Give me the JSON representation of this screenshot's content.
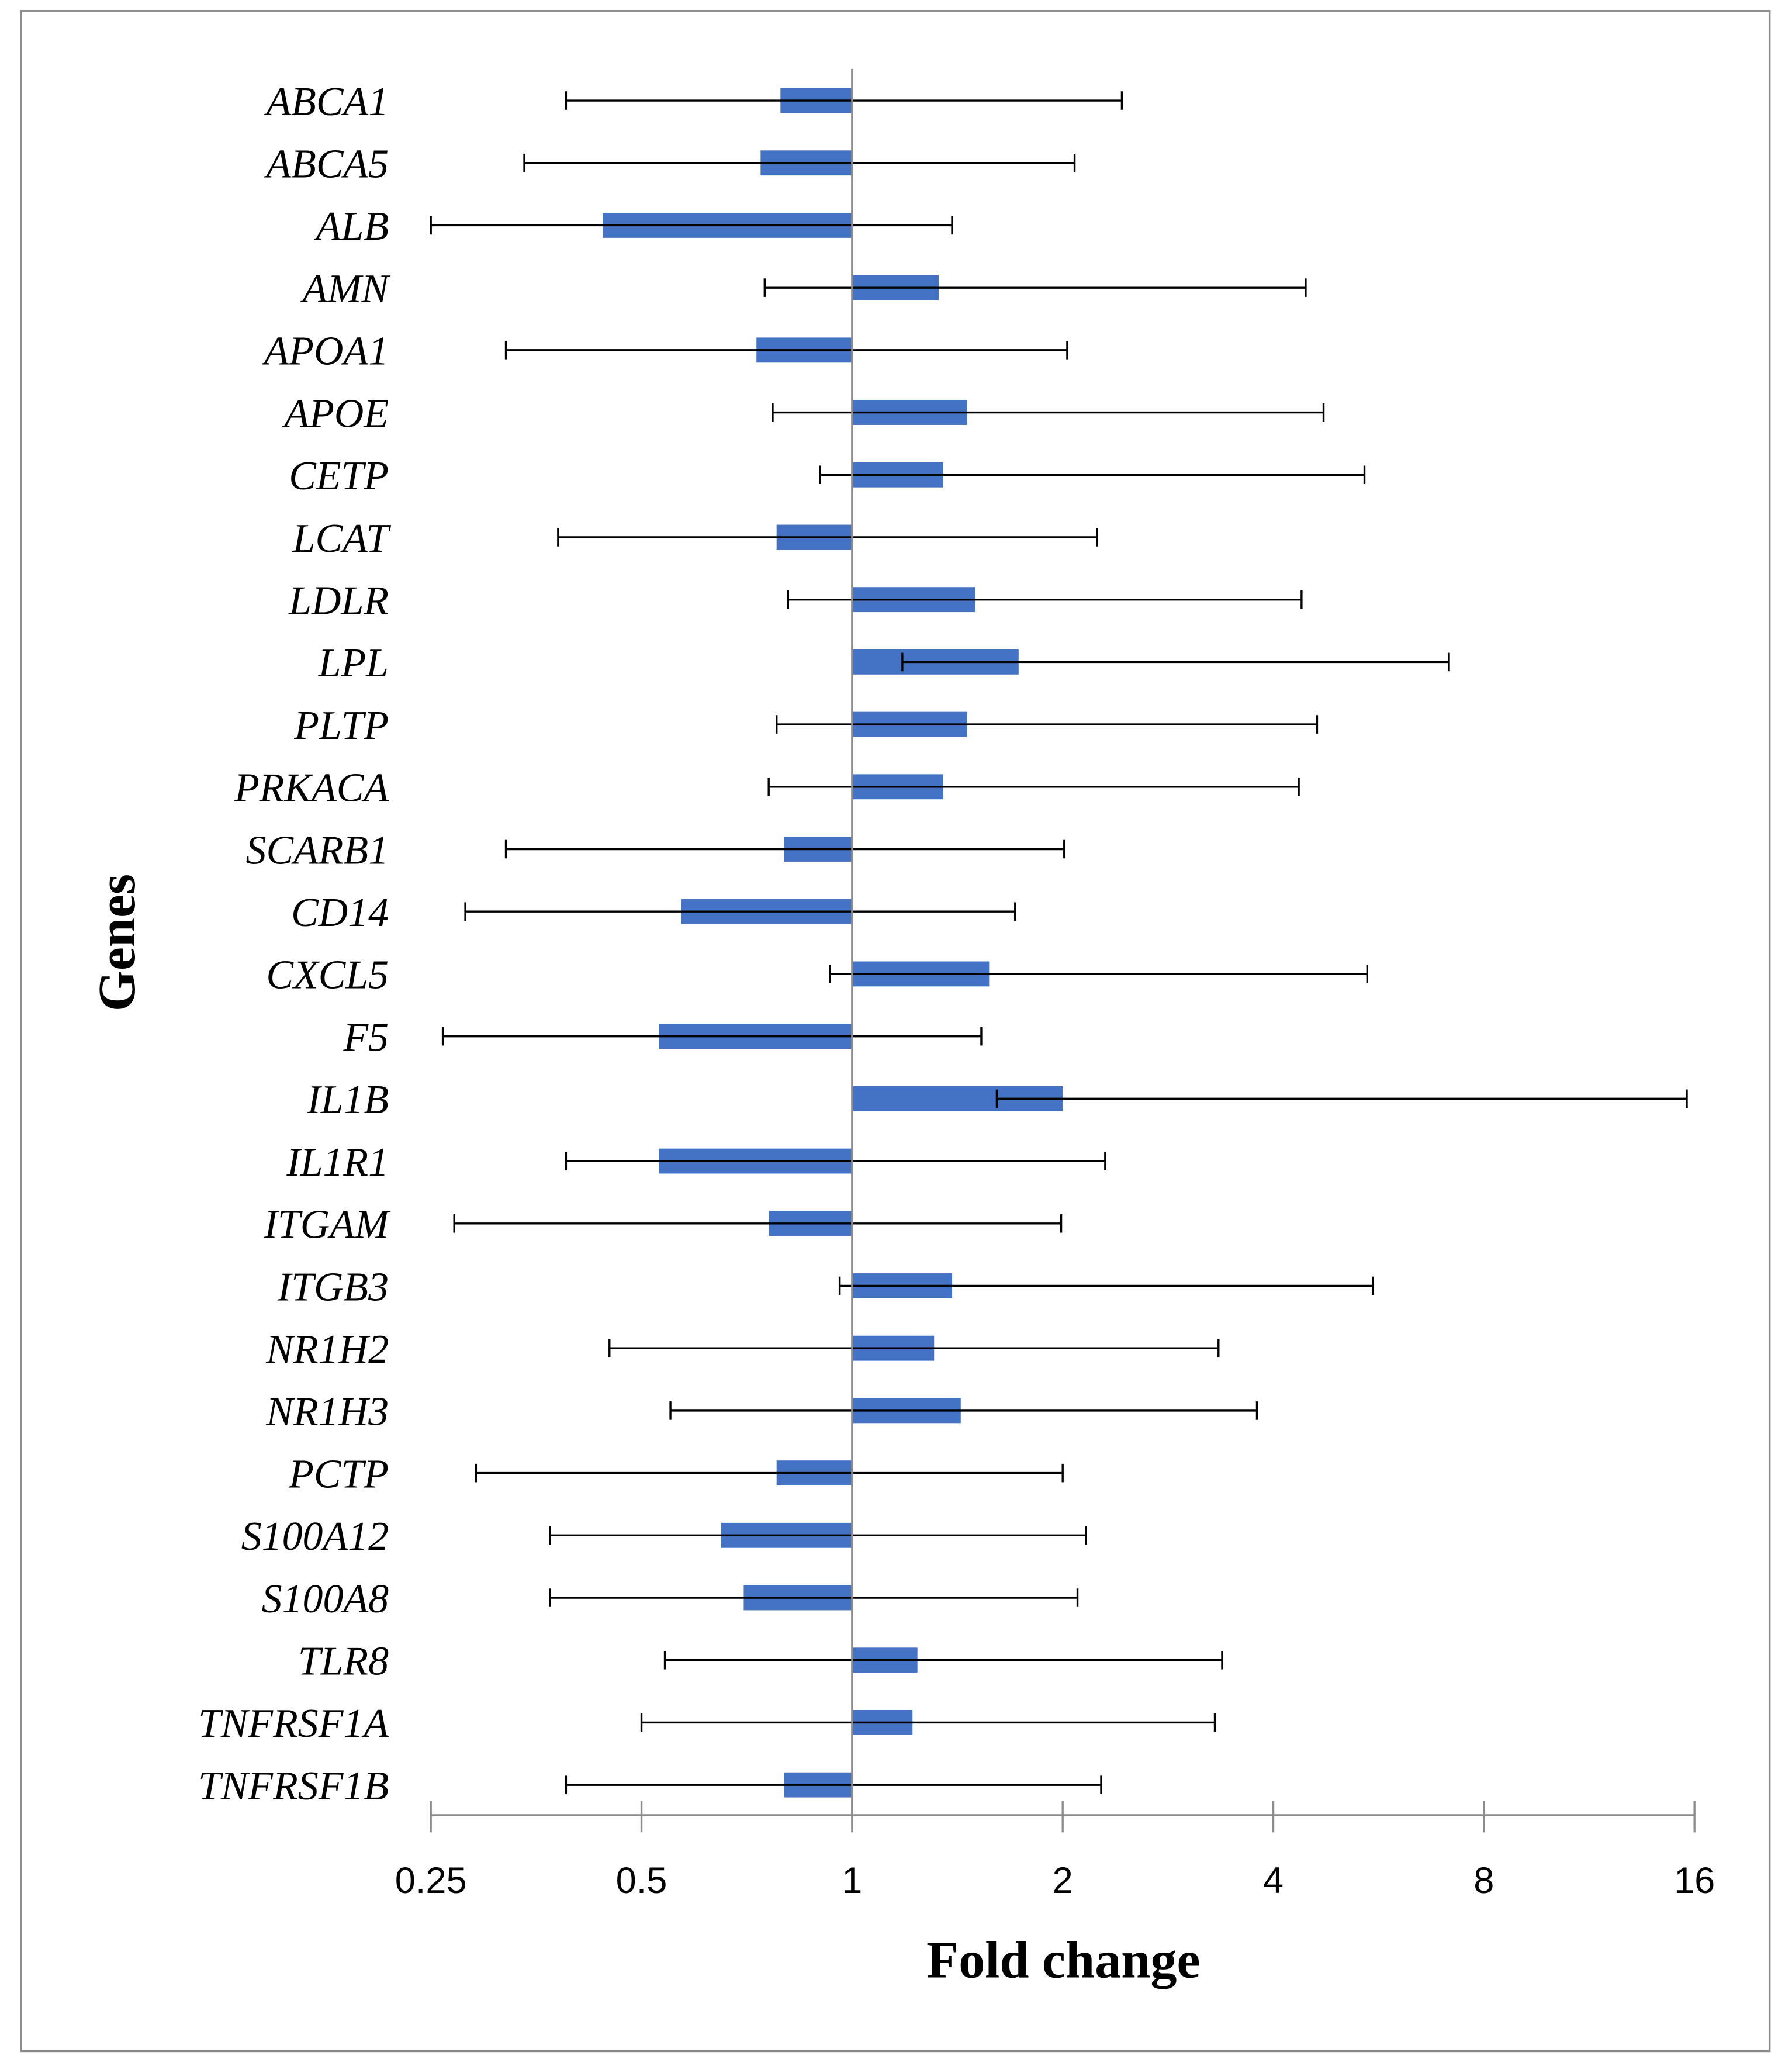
{
  "chart_data": {
    "type": "bar",
    "orientation": "horizontal",
    "title": "",
    "xlabel": "Fold change",
    "ylabel": "Genes",
    "x_scale": "log2",
    "xlim": [
      0.25,
      16
    ],
    "x_ticks": [
      "0.25",
      "0.5",
      "1",
      "2",
      "4",
      "8",
      "16"
    ],
    "baseline": 1,
    "grid": false,
    "bar_color": "#4472C4",
    "categories": [
      "ABCA1",
      "ABCA5",
      "ALB",
      "AMN",
      "APOA1",
      "APOE",
      "CETP",
      "LCAT",
      "LDLR",
      "LPL",
      "PLTP",
      "PRKACA",
      "SCARB1",
      "CD14",
      "CXCL5",
      "F5",
      "IL1B",
      "IL1R1",
      "ITGAM",
      "ITGB3",
      "NR1H2",
      "NR1H3",
      "PCTP",
      "S100A12",
      "S100A8",
      "TLR8",
      "TNFRSF1A",
      "TNFRSF1B"
    ],
    "values": [
      0.79,
      0.74,
      0.44,
      1.33,
      0.73,
      1.46,
      1.35,
      0.78,
      1.5,
      1.73,
      1.46,
      1.35,
      0.8,
      0.57,
      1.57,
      0.53,
      2.0,
      0.53,
      0.76,
      1.39,
      1.31,
      1.43,
      0.78,
      0.65,
      0.7,
      1.24,
      1.22,
      0.8
    ],
    "error_low": [
      0.39,
      0.34,
      0.25,
      0.75,
      0.32,
      0.77,
      0.9,
      0.38,
      0.81,
      1.18,
      0.78,
      0.76,
      0.32,
      0.28,
      0.93,
      0.26,
      1.61,
      0.39,
      0.27,
      0.96,
      0.45,
      0.55,
      0.29,
      0.37,
      0.37,
      0.54,
      0.5,
      0.39
    ],
    "error_high": [
      2.43,
      2.08,
      1.39,
      4.45,
      2.03,
      4.72,
      5.4,
      2.24,
      4.39,
      7.13,
      4.62,
      4.35,
      2.01,
      1.71,
      5.45,
      1.53,
      15.6,
      2.3,
      1.99,
      5.55,
      3.34,
      3.79,
      2.0,
      2.16,
      2.1,
      3.38,
      3.3,
      2.27
    ]
  }
}
